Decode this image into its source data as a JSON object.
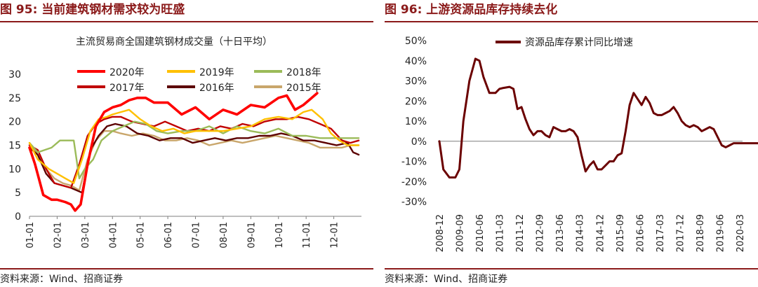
{
  "left": {
    "figure_title": "图 95:  当前建筑钢材需求较为旺盛",
    "source": "资料来源：Wind、招商证券",
    "chart_data": {
      "type": "line",
      "title": "主流贸易商全国建筑钢材成交量（十日平均）",
      "xlabel": "",
      "ylabel": "",
      "ylim": [
        0,
        30
      ],
      "yticks": [
        "0",
        "5",
        "10",
        "15",
        "20",
        "25",
        "30"
      ],
      "categories": [
        "01-01",
        "02-01",
        "03-01",
        "04-01",
        "05-01",
        "06-01",
        "07-01",
        "08-01",
        "09-01",
        "10-01",
        "11-01",
        "12-01"
      ],
      "x_range": [
        1,
        13
      ],
      "grid": false,
      "legend": "top",
      "series": [
        {
          "name": "2020年",
          "color": "#ff0000",
          "width": 3.6,
          "x": [
            1.0,
            1.2,
            1.5,
            1.8,
            2.0,
            2.3,
            2.5,
            2.65,
            2.85,
            3.1,
            3.4,
            3.7,
            4.0,
            4.3,
            4.6,
            4.9,
            5.2,
            5.5,
            6.0,
            6.5,
            7.0,
            7.5,
            8.0,
            8.5,
            9.0,
            9.5,
            10.0,
            10.3,
            10.6,
            10.9,
            11.1,
            11.4
          ],
          "y": [
            14.5,
            11,
            4.5,
            3.5,
            3.5,
            3.0,
            2.5,
            1.2,
            2.5,
            11,
            19,
            22,
            23,
            23.5,
            24.5,
            25,
            25,
            24,
            24,
            21.5,
            23,
            20.5,
            22.5,
            21.5,
            23.5,
            23,
            25,
            25.5,
            22.5,
            23.5,
            24.5,
            26
          ]
        },
        {
          "name": "2019年",
          "color": "#ffc000",
          "width": 2.4,
          "x": [
            1.0,
            1.3,
            1.7,
            2.0,
            2.3,
            2.6,
            2.9,
            3.2,
            3.5,
            3.8,
            4.0,
            4.3,
            4.6,
            5.0,
            5.4,
            5.8,
            6.2,
            6.6,
            7.0,
            7.5,
            8.0,
            8.5,
            9.0,
            9.5,
            10.0,
            10.5,
            10.9,
            11.2,
            11.6,
            11.9,
            12.2,
            12.5,
            12.9
          ],
          "y": [
            15.5,
            12,
            10,
            9,
            8,
            7,
            12,
            18,
            20.5,
            21,
            21.5,
            22,
            22.5,
            20.5,
            19,
            18,
            18.5,
            17.5,
            18,
            18,
            18,
            18.5,
            19,
            20.5,
            21,
            20.5,
            22,
            22.5,
            20.5,
            17.5,
            16,
            15,
            15
          ]
        },
        {
          "name": "2018年",
          "color": "#9bbb59",
          "width": 2.4,
          "x": [
            1.0,
            1.3,
            1.8,
            2.1,
            2.6,
            2.8,
            3.0,
            3.3,
            3.6,
            4.0,
            4.4,
            4.8,
            5.2,
            5.6,
            6.0,
            6.5,
            7.0,
            7.5,
            8.0,
            8.5,
            9.0,
            9.5,
            10.0,
            10.5,
            11.0,
            11.5,
            12.0,
            12.5,
            12.9
          ],
          "y": [
            15.5,
            13.5,
            14.5,
            16,
            16,
            8,
            10,
            12,
            16,
            18,
            19,
            20,
            19.5,
            18,
            17.5,
            18,
            18,
            19,
            17.5,
            19,
            18,
            17.5,
            18.5,
            17,
            17,
            16.5,
            16.5,
            16.5,
            16.5
          ]
        },
        {
          "name": "2017年",
          "color": "#c00000",
          "width": 2.4,
          "x": [
            1.0,
            1.3,
            1.6,
            1.9,
            2.2,
            2.5,
            2.8,
            3.1,
            3.4,
            3.7,
            4.0,
            4.3,
            4.7,
            5.1,
            5.5,
            5.9,
            6.3,
            6.7,
            7.1,
            7.5,
            7.9,
            8.3,
            8.7,
            9.1,
            9.5,
            9.9,
            10.3,
            10.7,
            11.1,
            11.5,
            11.9,
            12.3,
            12.6,
            12.9
          ],
          "y": [
            15,
            14,
            10,
            7,
            6.5,
            6,
            11,
            17,
            19.5,
            20.5,
            21,
            21,
            20,
            19.5,
            19,
            20,
            19,
            18,
            18.5,
            18,
            19,
            18.5,
            19.5,
            19,
            20,
            20.5,
            20.5,
            21,
            20.5,
            19.5,
            18.5,
            16,
            15.5,
            16
          ]
        },
        {
          "name": "2016年",
          "color": "#5c0000",
          "width": 2.4,
          "x": [
            1.0,
            1.3,
            1.6,
            1.9,
            2.2,
            2.5,
            2.7,
            2.9,
            3.2,
            3.5,
            3.8,
            4.1,
            4.5,
            4.9,
            5.3,
            5.7,
            6.1,
            6.5,
            6.9,
            7.3,
            7.7,
            8.1,
            8.5,
            8.9,
            9.3,
            9.7,
            10.1,
            10.5,
            10.9,
            11.3,
            11.7,
            12.1,
            12.5,
            12.7,
            12.9
          ],
          "y": [
            14.5,
            13,
            9,
            7,
            6.5,
            6,
            5.5,
            5,
            14,
            17,
            19,
            19.5,
            19,
            17.5,
            17,
            16,
            16.5,
            16.5,
            15.5,
            16,
            16.5,
            16,
            16.5,
            16.5,
            17,
            17,
            17.5,
            17,
            16,
            16,
            15.5,
            15,
            15.5,
            13.5,
            13
          ]
        },
        {
          "name": "2015年",
          "color": "#c9a66b",
          "width": 2.4,
          "x": [
            1.0,
            1.3,
            1.6,
            1.9,
            2.2,
            2.5,
            2.8,
            3.1,
            3.4,
            3.7,
            4.0,
            4.3,
            4.7,
            5.1,
            5.5,
            5.9,
            6.3,
            6.7,
            7.1,
            7.5,
            7.9,
            8.3,
            8.7,
            9.1,
            9.5,
            9.9,
            10.3,
            10.7,
            11.1,
            11.5,
            11.9,
            12.3,
            12.6,
            12.9
          ],
          "y": [
            15,
            13,
            10,
            8,
            7,
            6.5,
            5.5,
            12,
            16,
            18,
            18,
            17.5,
            17,
            17.5,
            17,
            16,
            16,
            16.5,
            16,
            15,
            15.5,
            16,
            15.5,
            16,
            16.5,
            17,
            16.5,
            16,
            15.5,
            14.5,
            14.5,
            14.5,
            15,
            15
          ]
        }
      ]
    }
  },
  "right": {
    "figure_title": "图 96:  上游资源品库存持续去化",
    "source": "资料来源：Wind、招商证券",
    "chart_data": {
      "type": "line",
      "title": "",
      "xlabel": "",
      "ylabel": "",
      "ylim": [
        -30,
        50
      ],
      "yticks": [
        "-30%",
        "-20%",
        "-10%",
        "0%",
        "10%",
        "20%",
        "30%",
        "40%",
        "50%"
      ],
      "categories": [
        "2008-12",
        "2009-09",
        "2010-06",
        "2011-03",
        "2011-12",
        "2012-09",
        "2013-06",
        "2014-03",
        "2014-12",
        "2015-09",
        "2016-06",
        "2017-03",
        "2017-12",
        "2018-09",
        "2019-06",
        "2020-03"
      ],
      "grid": false,
      "legend": "top-left",
      "series": [
        {
          "name": "资源品库存累计同比增速",
          "color": "#6b0000",
          "width": 3,
          "x": [
            0.0,
            0.2,
            0.5,
            0.8,
            1.0,
            1.2,
            1.5,
            1.8,
            2.0,
            2.2,
            2.5,
            2.8,
            3.0,
            3.2,
            3.5,
            3.7,
            3.9,
            4.1,
            4.3,
            4.5,
            4.7,
            4.9,
            5.1,
            5.3,
            5.5,
            5.7,
            5.9,
            6.1,
            6.3,
            6.5,
            6.7,
            6.9,
            7.1,
            7.3,
            7.5,
            7.7,
            7.9,
            8.1,
            8.3,
            8.5,
            8.7,
            8.9,
            9.1,
            9.3,
            9.5,
            9.7,
            9.9,
            10.1,
            10.3,
            10.5,
            10.7,
            10.9,
            11.1,
            11.3,
            11.5,
            11.7,
            11.9,
            12.1,
            12.3,
            12.5,
            12.7,
            12.9,
            13.1,
            13.3,
            13.5,
            13.7,
            13.9,
            14.1,
            14.3,
            14.5,
            14.7,
            14.9,
            15.1,
            15.3,
            15.5,
            15.7,
            15.9
          ],
          "y": [
            0,
            -14,
            -18,
            -18,
            -14,
            10,
            30,
            41,
            40,
            32,
            24,
            24,
            26,
            26.5,
            27,
            26,
            16,
            17,
            11,
            6,
            3,
            5,
            5,
            3,
            2,
            7,
            6,
            5,
            5,
            6,
            5,
            2,
            -7,
            -15,
            -12,
            -10,
            -14,
            -14,
            -12,
            -10,
            -10,
            -7,
            -6,
            5,
            18,
            24,
            21,
            18,
            22,
            19,
            14,
            13,
            13,
            14,
            15,
            17,
            14,
            10,
            8,
            7,
            8,
            7,
            5,
            6,
            7,
            6,
            2,
            -2,
            -3,
            -2,
            -1,
            -1,
            -1,
            -1,
            -1,
            -1,
            -1
          ]
        }
      ]
    }
  }
}
